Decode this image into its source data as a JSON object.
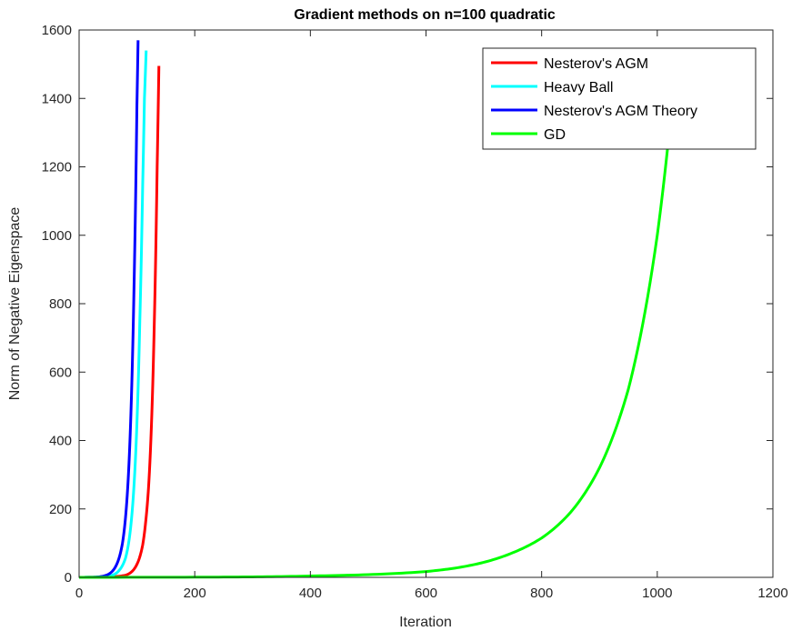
{
  "chart_data": {
    "type": "line",
    "title": "Gradient methods on n=100 quadratic",
    "xlabel": "Iteration",
    "ylabel": "Norm of Negative Eigenspace",
    "xlim": [
      0,
      1200
    ],
    "ylim": [
      0,
      1600
    ],
    "xticks": [
      0,
      200,
      400,
      600,
      800,
      1000,
      1200
    ],
    "yticks": [
      0,
      200,
      400,
      600,
      800,
      1000,
      1200,
      1400,
      1600
    ],
    "xtick_labels": [
      "0",
      "200",
      "400",
      "600",
      "800",
      "1000",
      "1200"
    ],
    "ytick_labels": [
      "0",
      "200",
      "400",
      "600",
      "800",
      "1000",
      "1200",
      "1400",
      "1600"
    ],
    "grid": false,
    "legend_position": "top-right",
    "series": [
      {
        "name": "Nesterov's AGM",
        "color": "#ff0000",
        "x": [
          0,
          40,
          60,
          80,
          90,
          100,
          110,
          115,
          120,
          125,
          130,
          135,
          138
        ],
        "y": [
          0,
          0.5,
          2,
          6,
          15,
          38,
          95,
          160,
          260,
          440,
          740,
          1200,
          1495
        ]
      },
      {
        "name": "Heavy Ball",
        "color": "#00ffff",
        "x": [
          0,
          30,
          45,
          60,
          70,
          80,
          90,
          95,
          100,
          105,
          110,
          113,
          116
        ],
        "y": [
          0,
          0.5,
          2,
          8,
          22,
          55,
          160,
          270,
          450,
          750,
          1150,
          1400,
          1540
        ]
      },
      {
        "name": "Nesterov's AGM Theory",
        "color": "#0000ff",
        "x": [
          0,
          25,
          40,
          55,
          65,
          75,
          80,
          85,
          90,
          95,
          100,
          102
        ],
        "y": [
          0,
          0.5,
          3,
          14,
          38,
          100,
          170,
          290,
          500,
          850,
          1380,
          1570
        ]
      },
      {
        "name": "GD",
        "color": "#00ff00",
        "x": [
          0,
          200,
          300,
          400,
          500,
          600,
          650,
          700,
          750,
          800,
          850,
          900,
          950,
          1000,
          1020
        ],
        "y": [
          0,
          0.5,
          1.5,
          4,
          8,
          17,
          27,
          44,
          72,
          115,
          190,
          320,
          550,
          1000,
          1290
        ]
      }
    ]
  }
}
